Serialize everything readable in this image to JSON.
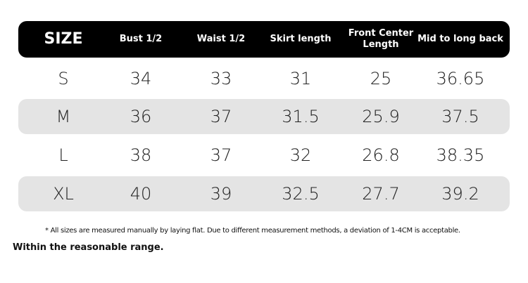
{
  "table": {
    "header": [
      "SIZE",
      "Bust 1/2",
      "Waist 1/2",
      "Skirt length",
      "Front Center Length",
      "Mid to long back"
    ],
    "rows": [
      [
        "S",
        "34",
        "33",
        "31",
        "25",
        "36.65"
      ],
      [
        "M",
        "36",
        "37",
        "31.5",
        "25.9",
        "37.5"
      ],
      [
        "L",
        "38",
        "37",
        "32",
        "26.8",
        "38.35"
      ],
      [
        "XL",
        "40",
        "39",
        "32.5",
        "27.7",
        "39.2"
      ]
    ]
  },
  "note": "* All sizes are measured manually by laying flat. Due to different measurement methods, a deviation of 1-4CM is acceptable.",
  "note2": "Within the reasonable range."
}
